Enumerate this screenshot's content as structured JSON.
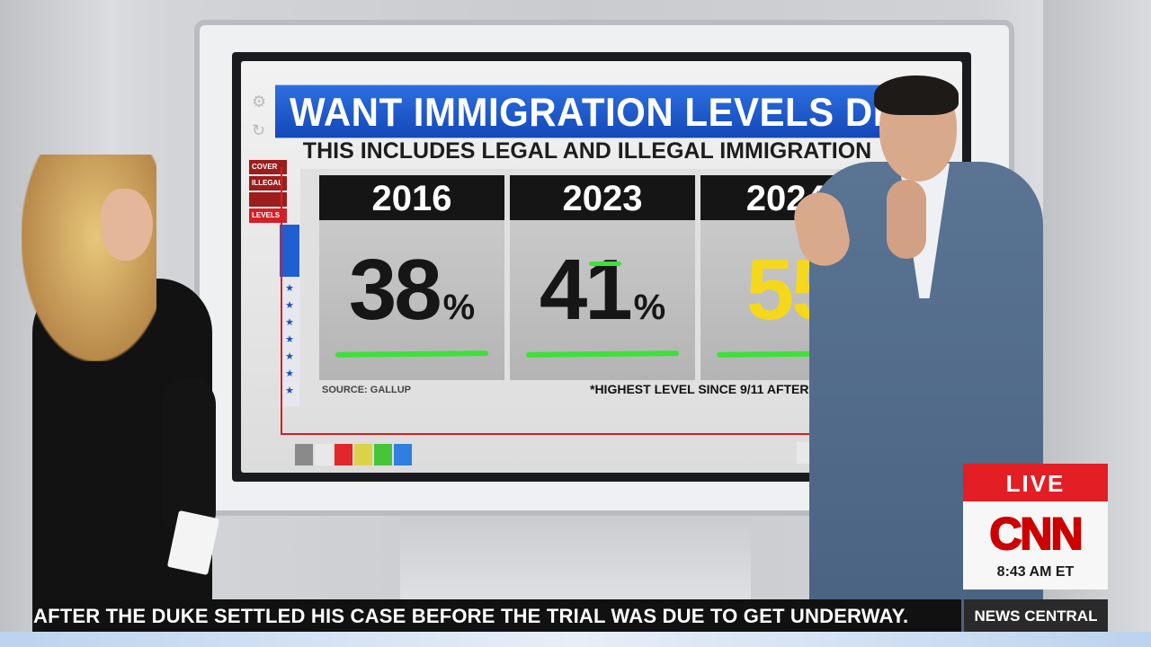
{
  "graphic": {
    "headline": "WANT IMMIGRATION LEVELS DECREAS",
    "subhead": "THIS INCLUDES LEGAL AND ILLEGAL IMMIGRATION",
    "side_tags": [
      "COVER",
      "ILLEGAL",
      "",
      "LEVELS"
    ],
    "columns": [
      {
        "year": "2016",
        "value": "38",
        "unit": "%"
      },
      {
        "year": "2023",
        "value": "41",
        "unit": "%"
      },
      {
        "year": "2024*",
        "value": "55",
        "unit": ""
      }
    ],
    "source": "SOURCE: GALLUP",
    "footnote": "*HIGHEST LEVEL SINCE 9/11 AFTERMATH",
    "colors": {
      "headline_blue": "#1f5fd1",
      "highlight_yellow": "#f5d81c",
      "underline_green": "#3ee03a",
      "accent_red": "#d31f26"
    },
    "icons": [
      "gear-icon",
      "undo-icon",
      "star-icon"
    ]
  },
  "bug": {
    "live": "LIVE",
    "logo": "CNN",
    "time": "8:43 AM ET"
  },
  "ticker": {
    "text": "AFTER THE DUKE SETTLED HIS CASE BEFORE THE TRIAL WAS DUE TO GET UNDERWAY.",
    "label": "NEWS CENTRAL"
  }
}
